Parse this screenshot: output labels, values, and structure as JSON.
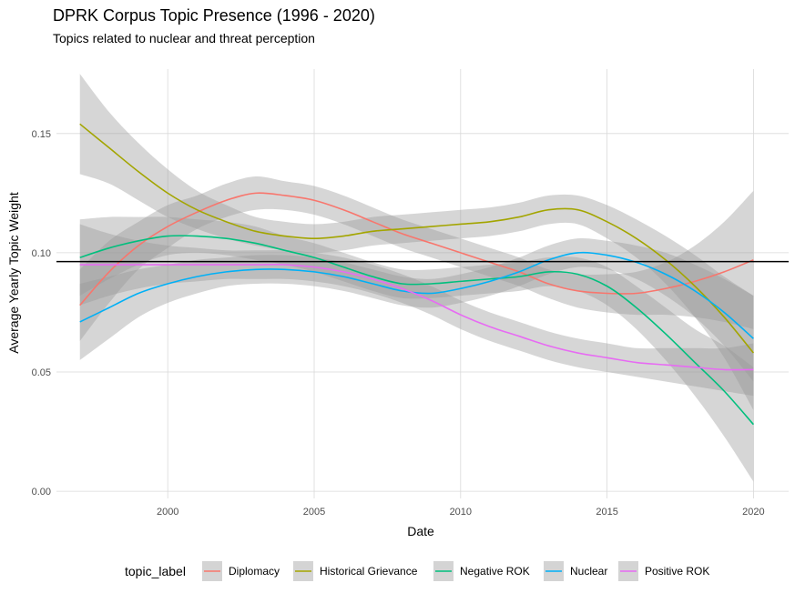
{
  "chart_data": {
    "type": "line",
    "title": "DPRK Corpus Topic Presence (1996 - 2020)",
    "subtitle": "Topics related to nuclear and threat perception",
    "xlabel": "Date",
    "ylabel": "Average Yearly Topic Weight",
    "xlim": [
      1996.2,
      2021.2
    ],
    "ylim": [
      -0.003,
      0.177
    ],
    "x_ticks": [
      2000,
      2005,
      2010,
      2015,
      2020
    ],
    "y_ticks": [
      0.0,
      0.05,
      0.1,
      0.15
    ],
    "x_tick_labels": [
      "2000",
      "2005",
      "2010",
      "2015",
      "2020"
    ],
    "y_tick_labels": [
      "0.00",
      "0.05",
      "0.10",
      "0.15"
    ],
    "grid": true,
    "legend_position": "bottom",
    "legend_title": "topic_label",
    "reference_line": {
      "y": 0.0963,
      "color": "#000000"
    },
    "series": [
      {
        "name": "Diplomacy",
        "color": "#F8766D",
        "x": [
          1997,
          1998,
          1999,
          2000,
          2001,
          2002,
          2003,
          2004,
          2005,
          2006,
          2007,
          2008,
          2009,
          2010,
          2011,
          2012,
          2013,
          2014,
          2015,
          2016,
          2017,
          2018,
          2019,
          2020
        ],
        "y": [
          0.078,
          0.092,
          0.103,
          0.111,
          0.117,
          0.122,
          0.125,
          0.124,
          0.122,
          0.118,
          0.113,
          0.108,
          0.104,
          0.1,
          0.096,
          0.092,
          0.087,
          0.084,
          0.083,
          0.083,
          0.085,
          0.088,
          0.092,
          0.097
        ],
        "lower": [
          0.063,
          0.079,
          0.093,
          0.102,
          0.11,
          0.115,
          0.118,
          0.118,
          0.116,
          0.112,
          0.107,
          0.102,
          0.098,
          0.094,
          0.09,
          0.086,
          0.081,
          0.077,
          0.075,
          0.074,
          0.074,
          0.073,
          0.071,
          0.068
        ],
        "upper": [
          0.093,
          0.105,
          0.113,
          0.12,
          0.124,
          0.129,
          0.132,
          0.13,
          0.128,
          0.124,
          0.119,
          0.114,
          0.11,
          0.106,
          0.102,
          0.098,
          0.093,
          0.091,
          0.091,
          0.092,
          0.096,
          0.103,
          0.113,
          0.126
        ]
      },
      {
        "name": "Historical Grievance",
        "color": "#A3A500",
        "x": [
          1997,
          1998,
          1999,
          2000,
          2001,
          2002,
          2003,
          2004,
          2005,
          2006,
          2007,
          2008,
          2009,
          2010,
          2011,
          2012,
          2013,
          2014,
          2015,
          2016,
          2017,
          2018,
          2019,
          2020
        ],
        "y": [
          0.154,
          0.144,
          0.134,
          0.125,
          0.118,
          0.113,
          0.109,
          0.107,
          0.106,
          0.107,
          0.109,
          0.11,
          0.111,
          0.112,
          0.113,
          0.115,
          0.118,
          0.118,
          0.113,
          0.106,
          0.097,
          0.086,
          0.073,
          0.058
        ],
        "lower": [
          0.133,
          0.129,
          0.122,
          0.115,
          0.11,
          0.106,
          0.103,
          0.101,
          0.1,
          0.101,
          0.103,
          0.104,
          0.105,
          0.106,
          0.107,
          0.109,
          0.112,
          0.112,
          0.106,
          0.098,
          0.087,
          0.073,
          0.056,
          0.034
        ],
        "upper": [
          0.175,
          0.159,
          0.146,
          0.135,
          0.126,
          0.12,
          0.115,
          0.113,
          0.112,
          0.113,
          0.115,
          0.116,
          0.117,
          0.118,
          0.119,
          0.121,
          0.124,
          0.124,
          0.12,
          0.114,
          0.107,
          0.099,
          0.09,
          0.082
        ]
      },
      {
        "name": "Negative ROK",
        "color": "#00BF7D",
        "x": [
          1997,
          1998,
          1999,
          2000,
          2001,
          2002,
          2003,
          2004,
          2005,
          2006,
          2007,
          2008,
          2009,
          2010,
          2011,
          2012,
          2013,
          2014,
          2015,
          2016,
          2017,
          2018,
          2019,
          2020
        ],
        "y": [
          0.098,
          0.102,
          0.105,
          0.107,
          0.107,
          0.106,
          0.104,
          0.101,
          0.098,
          0.094,
          0.09,
          0.087,
          0.087,
          0.088,
          0.089,
          0.09,
          0.092,
          0.091,
          0.086,
          0.077,
          0.066,
          0.054,
          0.042,
          0.028
        ],
        "lower": [
          0.082,
          0.089,
          0.095,
          0.099,
          0.1,
          0.099,
          0.097,
          0.095,
          0.092,
          0.088,
          0.084,
          0.081,
          0.081,
          0.082,
          0.083,
          0.084,
          0.086,
          0.084,
          0.078,
          0.068,
          0.055,
          0.04,
          0.023,
          0.004
        ],
        "upper": [
          0.114,
          0.115,
          0.115,
          0.115,
          0.114,
          0.113,
          0.111,
          0.107,
          0.104,
          0.1,
          0.096,
          0.093,
          0.093,
          0.094,
          0.095,
          0.096,
          0.098,
          0.098,
          0.094,
          0.086,
          0.077,
          0.068,
          0.061,
          0.052
        ]
      },
      {
        "name": "Nuclear",
        "color": "#00B0F6",
        "x": [
          1997,
          1998,
          1999,
          2000,
          2001,
          2002,
          2003,
          2004,
          2005,
          2006,
          2007,
          2008,
          2009,
          2010,
          2011,
          2012,
          2013,
          2014,
          2015,
          2016,
          2017,
          2018,
          2019,
          2020
        ],
        "y": [
          0.071,
          0.077,
          0.083,
          0.087,
          0.09,
          0.092,
          0.093,
          0.093,
          0.092,
          0.09,
          0.087,
          0.084,
          0.083,
          0.085,
          0.088,
          0.092,
          0.097,
          0.1,
          0.099,
          0.096,
          0.091,
          0.084,
          0.075,
          0.064
        ],
        "lower": [
          0.055,
          0.064,
          0.073,
          0.079,
          0.083,
          0.086,
          0.087,
          0.087,
          0.086,
          0.084,
          0.081,
          0.078,
          0.077,
          0.079,
          0.082,
          0.086,
          0.091,
          0.094,
          0.093,
          0.089,
          0.082,
          0.073,
          0.061,
          0.046
        ],
        "upper": [
          0.087,
          0.09,
          0.093,
          0.095,
          0.097,
          0.098,
          0.099,
          0.099,
          0.098,
          0.096,
          0.093,
          0.09,
          0.089,
          0.091,
          0.094,
          0.098,
          0.103,
          0.106,
          0.105,
          0.103,
          0.1,
          0.095,
          0.089,
          0.082
        ]
      },
      {
        "name": "Positive ROK",
        "color": "#E76BF3",
        "x": [
          1997,
          1998,
          1999,
          2000,
          2001,
          2002,
          2003,
          2004,
          2005,
          2006,
          2007,
          2008,
          2009,
          2010,
          2011,
          2012,
          2013,
          2014,
          2015,
          2016,
          2017,
          2018,
          2019,
          2020
        ],
        "y": [
          0.095,
          0.095,
          0.095,
          0.095,
          0.095,
          0.095,
          0.095,
          0.095,
          0.094,
          0.092,
          0.089,
          0.085,
          0.08,
          0.074,
          0.069,
          0.065,
          0.061,
          0.058,
          0.056,
          0.054,
          0.053,
          0.052,
          0.051,
          0.051
        ],
        "lower": [
          0.078,
          0.082,
          0.085,
          0.087,
          0.088,
          0.089,
          0.089,
          0.089,
          0.088,
          0.086,
          0.083,
          0.079,
          0.074,
          0.068,
          0.063,
          0.059,
          0.055,
          0.052,
          0.05,
          0.048,
          0.046,
          0.044,
          0.042,
          0.04
        ],
        "upper": [
          0.112,
          0.108,
          0.105,
          0.103,
          0.102,
          0.101,
          0.101,
          0.101,
          0.1,
          0.098,
          0.095,
          0.091,
          0.086,
          0.08,
          0.075,
          0.071,
          0.067,
          0.064,
          0.062,
          0.06,
          0.06,
          0.06,
          0.06,
          0.062
        ]
      }
    ]
  }
}
